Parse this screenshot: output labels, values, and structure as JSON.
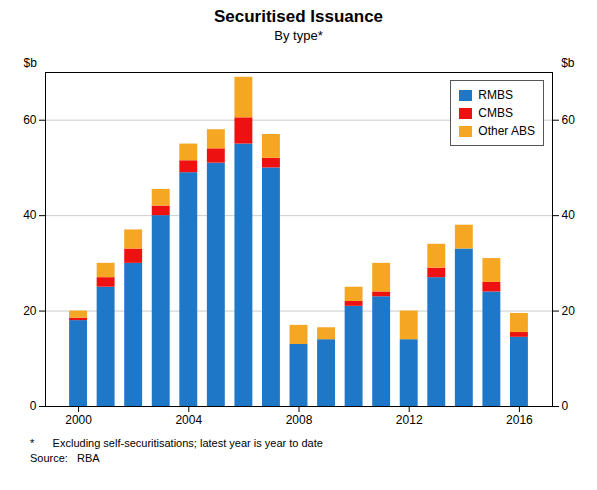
{
  "chart_data": {
    "type": "bar",
    "stacked": true,
    "title": "Securitised Issuance",
    "subtitle": "By type*",
    "ylabel": "$b",
    "y2label": "$b",
    "footnote": "*      Excluding self-securitisations; latest year is year to date",
    "source": "Source:   RBA",
    "x": [
      2000,
      2001,
      2002,
      2003,
      2004,
      2005,
      2006,
      2007,
      2008,
      2009,
      2010,
      2011,
      2012,
      2013,
      2014,
      2015,
      2016
    ],
    "series": [
      {
        "name": "RMBS",
        "color": "#1F77C8",
        "values": [
          18.0,
          25.0,
          30.0,
          40.0,
          49.0,
          51.0,
          55.0,
          50.0,
          13.0,
          14.0,
          21.0,
          23.0,
          14.0,
          27.0,
          33.0,
          24.0,
          14.5
        ]
      },
      {
        "name": "CMBS",
        "color": "#EE1111",
        "values": [
          0.5,
          2.0,
          3.0,
          2.0,
          2.5,
          3.0,
          5.5,
          2.0,
          0.0,
          0.0,
          1.0,
          1.0,
          0.0,
          2.0,
          0.0,
          2.0,
          1.0
        ]
      },
      {
        "name": "Other ABS",
        "color": "#F5A623",
        "values": [
          1.5,
          3.0,
          4.0,
          3.5,
          3.5,
          4.0,
          8.5,
          5.0,
          4.0,
          2.5,
          3.0,
          6.0,
          6.0,
          5.0,
          5.0,
          5.0,
          4.0
        ]
      }
    ],
    "xlim": [
      1998.8,
      2017.2
    ],
    "xticks": [
      2000,
      2004,
      2008,
      2012,
      2016
    ],
    "ylim": [
      0,
      70
    ],
    "yticks": [
      0,
      20,
      40,
      60
    ],
    "y2lim": [
      0,
      70
    ],
    "y2ticks": [
      0,
      20,
      40,
      60
    ],
    "grid": true,
    "legend": "upper right"
  }
}
